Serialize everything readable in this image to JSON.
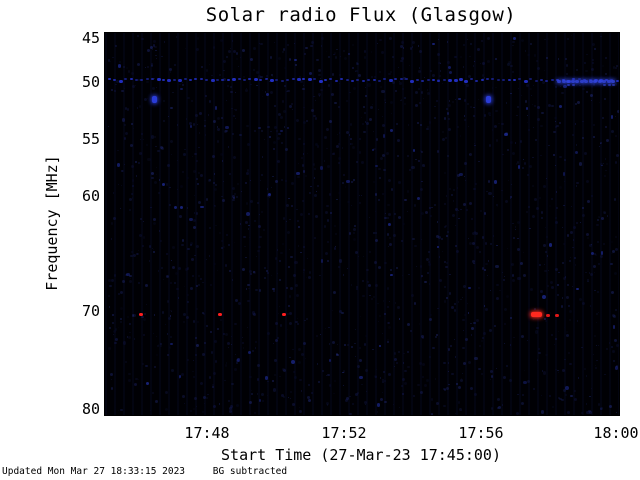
{
  "title": "Solar radio Flux (Glasgow)",
  "footer": {
    "updated": "Updated Mon Mar 27 18:33:15 2023",
    "bg_note": "BG subtracted"
  },
  "axes": {
    "x": {
      "label": "Start Time (27-Mar-23 17:45:00)",
      "ticks": [
        {
          "label": "17:48"
        },
        {
          "label": "17:52"
        },
        {
          "label": "17:56"
        },
        {
          "label": "18:00"
        }
      ]
    },
    "y": {
      "label": "Frequency [MHz]",
      "ticks": [
        {
          "label": "45"
        },
        {
          "label": "50"
        },
        {
          "label": "55"
        },
        {
          "label": "60"
        },
        {
          "label": "70"
        },
        {
          "label": "80"
        }
      ]
    }
  },
  "colors": {
    "plot_background": "#000004",
    "interference_blue": "#2330c8",
    "bright_blue": "#2a3cd8",
    "burst_red": "#ff1f1f",
    "text": "#000000"
  },
  "chart_data": {
    "type": "heatmap",
    "title": "Solar radio Flux (Glasgow)",
    "xlabel": "Start Time (27-Mar-23 17:45:00)",
    "ylabel": "Frequency [MHz]",
    "x_start": "17:45",
    "x_range_minutes": [
      0,
      15
    ],
    "x_tick_labels": [
      "17:48",
      "17:52",
      "17:56",
      "18:00"
    ],
    "y_range_mhz": [
      45,
      80
    ],
    "y_tick_labels_mhz": [
      45,
      50,
      55,
      60,
      70,
      80
    ],
    "background": "black with faint dark-blue speckle noise",
    "freq_axis_map": [
      [
        45,
        0.0
      ],
      [
        50,
        0.13
      ],
      [
        55,
        0.28
      ],
      [
        60,
        0.43
      ],
      [
        70,
        0.73
      ],
      [
        80,
        1.0
      ]
    ],
    "features": [
      {
        "kind": "rfi_dotted_line",
        "freq_mhz": 49.7,
        "t_start_min": 0,
        "t_end_min": 15,
        "color": "#2330c8",
        "desc": "persistent dotted blue interference line near 50 MHz"
      },
      {
        "kind": "rfi_bright_segment",
        "freq_mhz": 49.8,
        "t_start_min": 13.2,
        "t_end_min": 14.8,
        "color": "#3346e0",
        "desc": "brighter doubled segment of the interference line"
      },
      {
        "kind": "point",
        "freq_mhz": 51.5,
        "t_min": 1.45,
        "color": "#2a3cd8",
        "size": "medium",
        "desc": "blue spot"
      },
      {
        "kind": "point",
        "freq_mhz": 51.5,
        "t_min": 11.18,
        "color": "#2a3cd8",
        "size": "medium",
        "desc": "blue spot"
      },
      {
        "kind": "point",
        "freq_mhz": 70.3,
        "t_min": 1.05,
        "color": "#ff1f1f",
        "size": "small",
        "desc": "red burst mark"
      },
      {
        "kind": "point",
        "freq_mhz": 70.3,
        "t_min": 3.36,
        "color": "#ff1f1f",
        "size": "small",
        "desc": "red burst mark"
      },
      {
        "kind": "point",
        "freq_mhz": 70.3,
        "t_min": 5.22,
        "color": "#ff1f1f",
        "size": "small",
        "desc": "red burst mark"
      },
      {
        "kind": "point",
        "freq_mhz": 70.3,
        "t_min": 12.6,
        "color": "#ff2a1f",
        "size": "large",
        "desc": "brightest red burst"
      },
      {
        "kind": "point",
        "freq_mhz": 70.4,
        "t_min": 12.93,
        "color": "#e01818",
        "size": "small",
        "desc": "red burst mark"
      },
      {
        "kind": "point",
        "freq_mhz": 70.4,
        "t_min": 13.19,
        "color": "#e01818",
        "size": "small",
        "desc": "red burst mark"
      }
    ],
    "noise": {
      "seed": 42,
      "count": 1700,
      "desc": "faint dark-blue background speckle"
    }
  }
}
